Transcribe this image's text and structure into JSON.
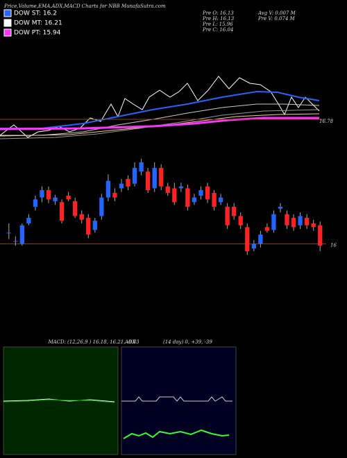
{
  "header": {
    "title": "Price,Volume,EMA,ADX,MACD Charts for NBB MunafaSutra.com"
  },
  "legend": [
    {
      "text": "DOW ST: 16.2",
      "color": "#2266ff"
    },
    {
      "text": "DOW MT: 16.21",
      "color": "#ffffff"
    },
    {
      "text": "DOW PT: 15.94",
      "color": "#ff33ff"
    }
  ],
  "info": [
    "Pre   O: 16.13",
    "Pre   H: 16.13",
    "Pre   L: 15.96",
    "Pre   C: 16.04",
    "Avg V: 0.007 M",
    "Pre   V: 0.074 M"
  ],
  "ema_panel": {
    "last_label": "16.78"
  },
  "macd_panel": {
    "label": "MACD:",
    "values": "(12,26,9 ) 16.18, 16.21, -0.03"
  },
  "adx_panel": {
    "label": "ADX",
    "values": "(14 day) 0, +39, -39"
  },
  "chart_data": {
    "type": "candlestick",
    "up_color": "#2266ff",
    "down_color": "#ff2222",
    "ylim": [
      15.8,
      17.0
    ],
    "ref_line": 16,
    "open": [
      16.12,
      16.03,
      16.0,
      16.22,
      16.4,
      16.5,
      16.58,
      16.46,
      16.45,
      16.52,
      16.46,
      16.32,
      16.28,
      16.15,
      16.3,
      16.5,
      16.55,
      16.6,
      16.7,
      16.65,
      16.78,
      16.78,
      16.6,
      16.82,
      16.62,
      16.6,
      16.6,
      16.6,
      16.45,
      16.52,
      16.62,
      16.55,
      16.45,
      16.4,
      16.4,
      16.3,
      16.18,
      15.95,
      16.0,
      16.18,
      16.15,
      16.38,
      16.32,
      16.28,
      16.2,
      16.28,
      16.22,
      16.2
    ],
    "high": [
      16.22,
      16.08,
      16.22,
      16.32,
      16.52,
      16.62,
      16.62,
      16.53,
      16.48,
      16.56,
      16.5,
      16.36,
      16.32,
      16.28,
      16.54,
      16.75,
      16.6,
      16.7,
      16.74,
      16.88,
      16.92,
      16.82,
      16.88,
      16.86,
      16.66,
      16.66,
      16.66,
      16.64,
      16.54,
      16.62,
      16.66,
      16.58,
      16.54,
      16.44,
      16.44,
      16.34,
      16.22,
      16.04,
      16.14,
      16.22,
      16.36,
      16.44,
      16.36,
      16.32,
      16.34,
      16.32,
      16.26,
      16.24
    ],
    "low": [
      16.05,
      15.98,
      15.98,
      16.2,
      16.36,
      16.45,
      16.44,
      16.42,
      16.22,
      16.46,
      16.28,
      16.22,
      16.06,
      16.12,
      16.26,
      16.46,
      16.46,
      16.56,
      16.58,
      16.62,
      16.74,
      16.55,
      16.56,
      16.58,
      16.52,
      16.42,
      16.56,
      16.36,
      16.42,
      16.48,
      16.44,
      16.36,
      16.42,
      16.16,
      16.26,
      16.16,
      15.88,
      15.92,
      15.96,
      16.12,
      16.12,
      16.34,
      16.16,
      16.14,
      16.16,
      16.16,
      16.14,
      15.92
    ],
    "close": [
      16.12,
      16.03,
      16.2,
      16.28,
      16.48,
      16.58,
      16.48,
      16.5,
      16.25,
      16.48,
      16.3,
      16.26,
      16.1,
      16.25,
      16.5,
      16.68,
      16.5,
      16.65,
      16.62,
      16.82,
      16.88,
      16.58,
      16.82,
      16.62,
      16.55,
      16.45,
      16.62,
      16.4,
      16.5,
      16.58,
      16.48,
      16.4,
      16.5,
      16.2,
      16.3,
      16.2,
      15.92,
      16.0,
      16.1,
      16.14,
      16.32,
      16.4,
      16.2,
      16.18,
      16.3,
      16.2,
      16.18,
      15.98
    ]
  }
}
